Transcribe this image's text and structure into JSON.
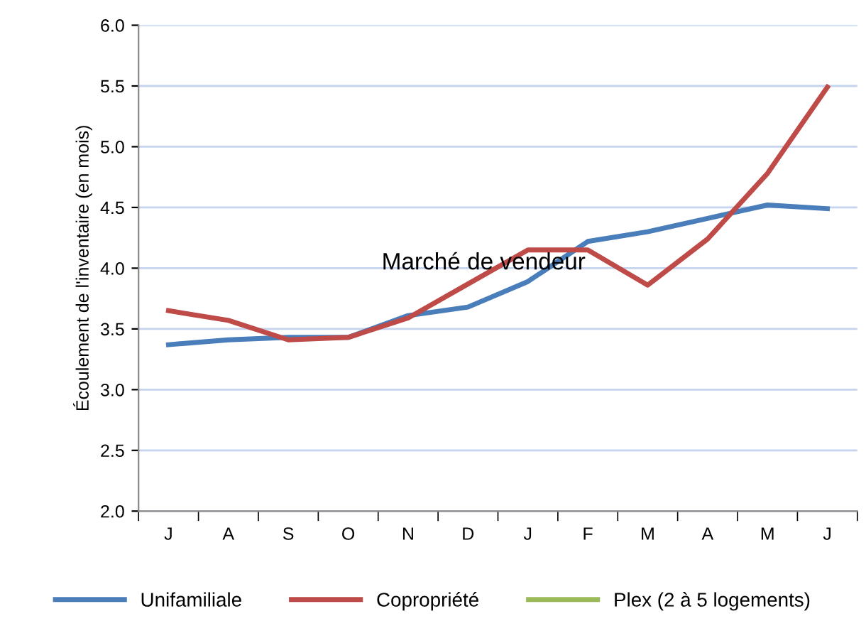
{
  "chart_data": {
    "type": "line",
    "ylabel": "Écoulement de l'inventaire (en mois)",
    "categories": [
      "J",
      "A",
      "S",
      "O",
      "N",
      "D",
      "J",
      "F",
      "M",
      "A",
      "M",
      "J"
    ],
    "series": [
      {
        "name": "Unifamiliale",
        "color": "#4a7ebb",
        "values": [
          3.37,
          3.41,
          3.43,
          3.43,
          3.61,
          3.68,
          3.89,
          4.22,
          4.3,
          4.41,
          4.52,
          4.49
        ]
      },
      {
        "name": "Copropriété",
        "color": "#be4b48",
        "values": [
          3.65,
          3.57,
          3.41,
          3.43,
          3.59,
          3.87,
          4.15,
          4.15,
          3.86,
          4.24,
          4.78,
          5.49
        ]
      },
      {
        "name": "Plex (2 à 5 logements)",
        "color": "#9bbb59",
        "values": [
          null,
          null,
          null,
          null,
          null,
          null,
          null,
          null,
          null,
          null,
          null,
          null
        ]
      }
    ],
    "ylim": [
      2.0,
      6.0
    ],
    "yticks": [
      {
        "value": 2.0,
        "label": "2.0"
      },
      {
        "value": 2.5,
        "label": "2.5"
      },
      {
        "value": 3.0,
        "label": "3.0"
      },
      {
        "value": 3.5,
        "label": "3.5"
      },
      {
        "value": 4.0,
        "label": "4.0"
      },
      {
        "value": 4.5,
        "label": "4.5"
      },
      {
        "value": 5.0,
        "label": "5.0"
      },
      {
        "value": 5.5,
        "label": "5.5"
      },
      {
        "value": 6.0,
        "label": "6.0"
      }
    ],
    "grid": "y",
    "legend": "bottom",
    "marker": "none",
    "line_style": "solid",
    "annotations": [
      "Marché de vendeur"
    ]
  }
}
